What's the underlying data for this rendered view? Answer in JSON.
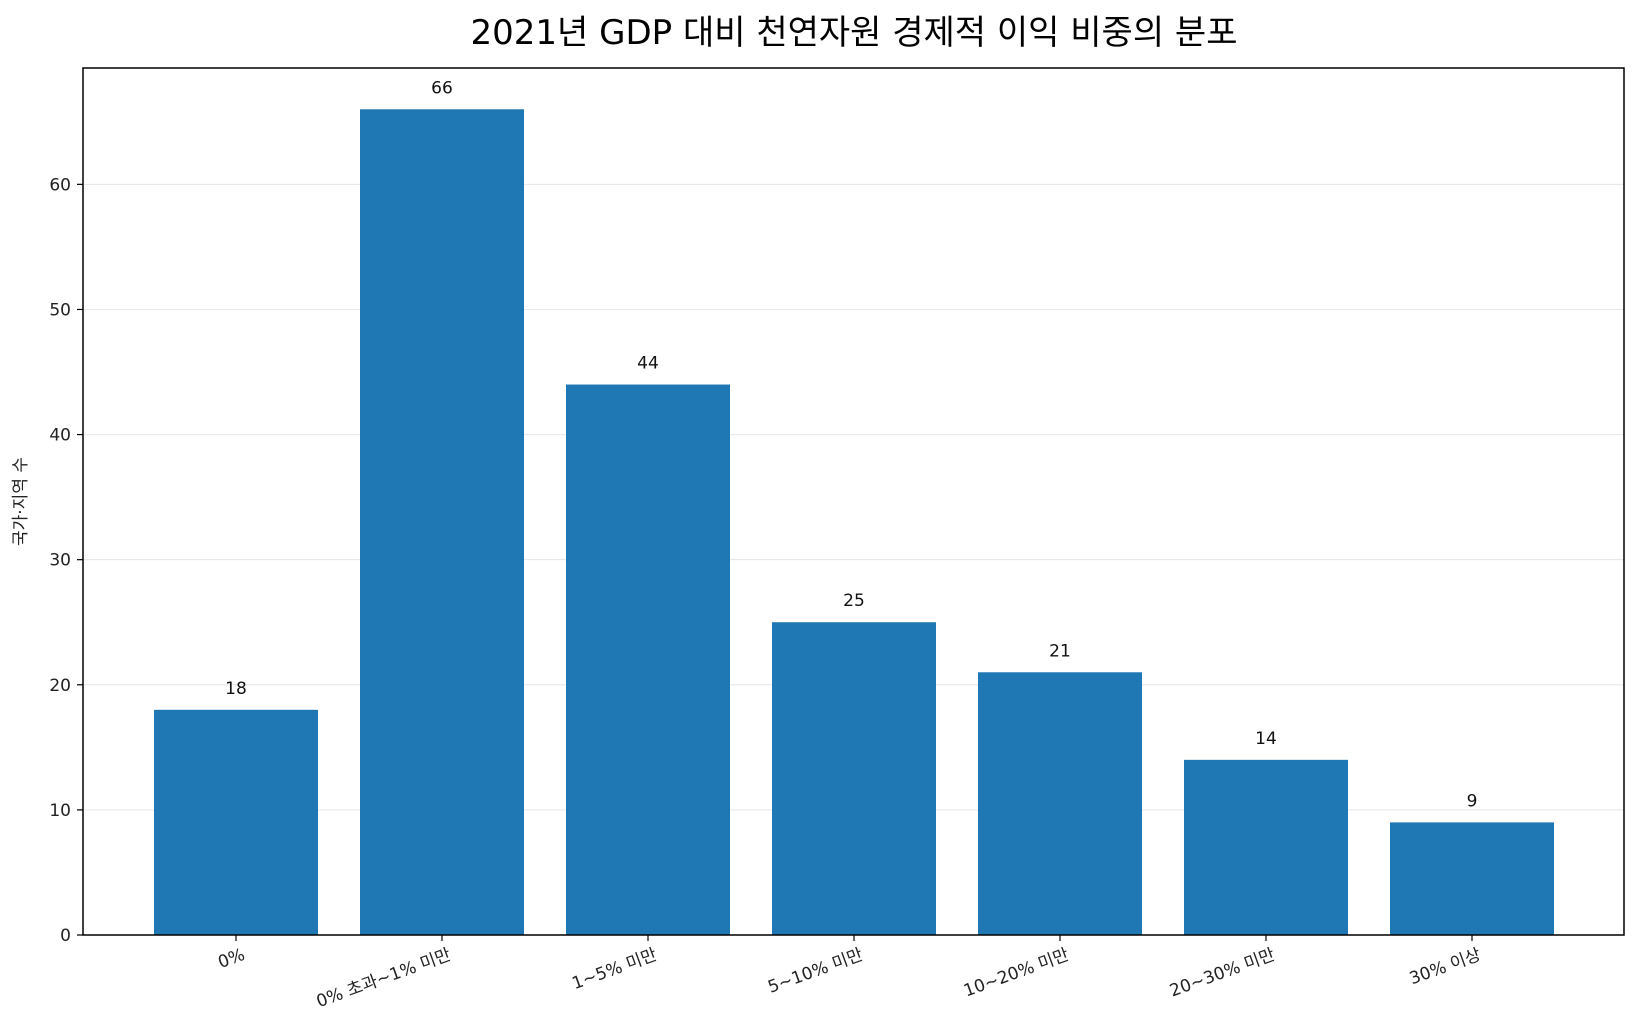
{
  "chart_data": {
    "type": "bar",
    "title": "2021년 GDP 대비 천연자원 경제적 이익 비중의 분포",
    "xlabel": "",
    "ylabel": "국가·지역 수",
    "categories": [
      "0%",
      "0% 초과~1% 미만",
      "1~5% 미만",
      "5~10% 미만",
      "10~20% 미만",
      "20~30% 미만",
      "30% 이상"
    ],
    "values": [
      18,
      66,
      44,
      25,
      21,
      14,
      9
    ],
    "ylim": [
      0,
      69.3
    ],
    "yticks": [
      0,
      10,
      20,
      30,
      40,
      50,
      60
    ],
    "grid": "horizontal",
    "bar_color": "#1f77b4",
    "data_labels": [
      "18",
      "66",
      "44",
      "25",
      "21",
      "14",
      "9"
    ]
  }
}
